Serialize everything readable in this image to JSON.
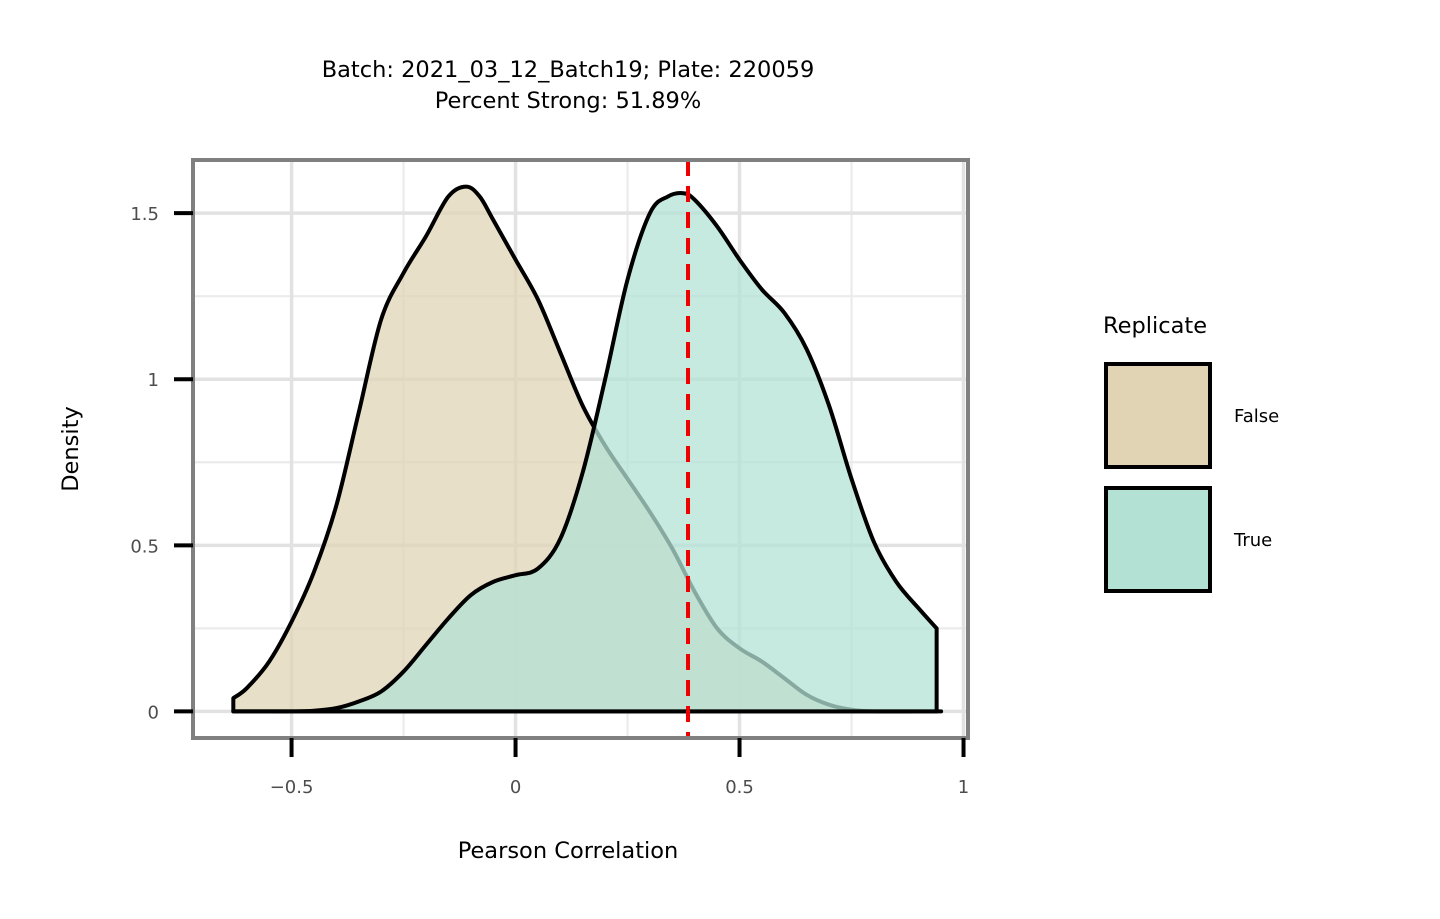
{
  "chart_data": {
    "type": "area",
    "title": "Batch: 2021_03_12_Batch19; Plate: 220059",
    "subtitle": "Percent Strong: 51.89%",
    "xlabel": "Pearson Correlation",
    "ylabel": "Density",
    "xlim": [
      -0.72,
      1.01
    ],
    "ylim": [
      -0.08,
      1.66
    ],
    "x_ticks": [
      -0.5,
      0,
      0.5,
      1
    ],
    "x_tick_labels": [
      "−0.5",
      "0",
      "0.5",
      "1"
    ],
    "y_ticks": [
      0,
      0.5,
      1,
      1.5
    ],
    "y_tick_labels": [
      "0",
      "0.5",
      "1",
      "1.5"
    ],
    "grid": true,
    "legend": {
      "title": "Replicate",
      "placement": "right",
      "entries": [
        "False",
        "True"
      ]
    },
    "reference_line": {
      "x": 0.385,
      "color": "#ee0000",
      "style": "dashed"
    },
    "series": [
      {
        "name": "False",
        "fill": "#e0d4b5",
        "x": [
          -0.63,
          -0.6,
          -0.55,
          -0.5,
          -0.45,
          -0.4,
          -0.35,
          -0.3,
          -0.25,
          -0.2,
          -0.15,
          -0.11,
          -0.08,
          -0.05,
          0.0,
          0.05,
          0.1,
          0.15,
          0.2,
          0.25,
          0.3,
          0.35,
          0.4,
          0.45,
          0.5,
          0.55,
          0.6,
          0.65,
          0.7,
          0.75,
          0.8,
          0.9,
          0.95
        ],
        "y": [
          0.04,
          0.07,
          0.15,
          0.27,
          0.42,
          0.62,
          0.9,
          1.18,
          1.32,
          1.43,
          1.55,
          1.58,
          1.55,
          1.48,
          1.36,
          1.24,
          1.08,
          0.92,
          0.8,
          0.7,
          0.6,
          0.49,
          0.36,
          0.25,
          0.19,
          0.15,
          0.1,
          0.05,
          0.02,
          0.005,
          0.0,
          0.0,
          0.0
        ]
      },
      {
        "name": "True",
        "fill": "#b3e2d5",
        "x": [
          -0.63,
          -0.55,
          -0.5,
          -0.45,
          -0.4,
          -0.35,
          -0.3,
          -0.25,
          -0.2,
          -0.15,
          -0.1,
          -0.05,
          0.0,
          0.05,
          0.1,
          0.15,
          0.2,
          0.25,
          0.3,
          0.34,
          0.375,
          0.4,
          0.45,
          0.5,
          0.55,
          0.6,
          0.65,
          0.7,
          0.75,
          0.8,
          0.85,
          0.9,
          0.94
        ],
        "y": [
          0.0,
          0.0,
          0.0,
          0.002,
          0.01,
          0.03,
          0.06,
          0.12,
          0.2,
          0.28,
          0.35,
          0.39,
          0.41,
          0.43,
          0.52,
          0.72,
          1.0,
          1.3,
          1.5,
          1.55,
          1.56,
          1.54,
          1.46,
          1.36,
          1.27,
          1.2,
          1.09,
          0.92,
          0.7,
          0.51,
          0.39,
          0.31,
          0.25
        ]
      }
    ]
  }
}
